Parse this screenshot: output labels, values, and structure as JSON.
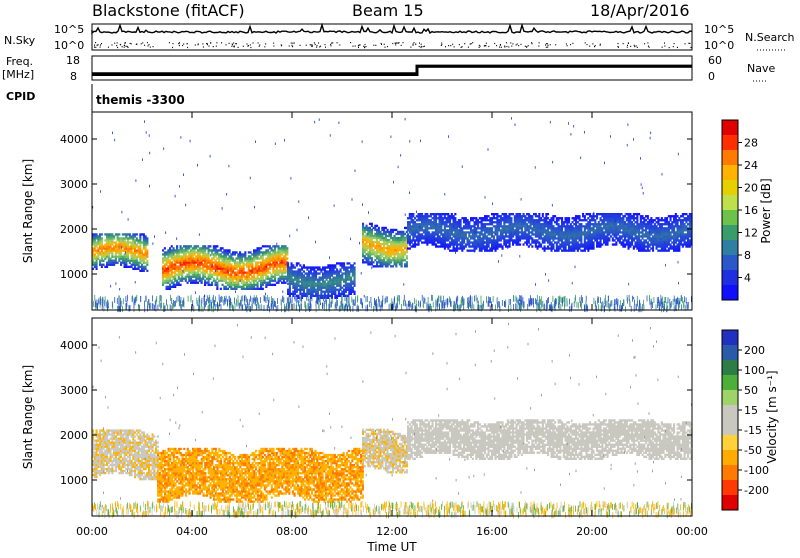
{
  "header": {
    "title": "Blackstone (fitACF)",
    "beam": "Beam 15",
    "date": "18/Apr/2016"
  },
  "housekeeping": {
    "nsky_label": "N.Sky",
    "nsearch_label": "N.Search",
    "nsky_ticks": [
      "10^5",
      "10^0"
    ],
    "nsearch_ticks": [
      "10^5",
      "10^0"
    ],
    "freq_label_1": "Freq.",
    "freq_label_2": "[MHz]",
    "freq_ticks": [
      "18",
      "8"
    ],
    "nave_label": "Nave",
    "nave_ticks": [
      "60",
      "0"
    ],
    "cpid_label": "CPID",
    "cpid_value": "themis -3300",
    "freq_steps": [
      {
        "t": 0,
        "mhz": 10.3
      },
      {
        "t": 13.0,
        "mhz": 10.3
      },
      {
        "t": 13.0,
        "mhz": 13.8
      },
      {
        "t": 24,
        "mhz": 13.8
      }
    ],
    "nave_steps": [
      {
        "t": 0,
        "n": 18
      },
      {
        "t": 13.0,
        "n": 18
      },
      {
        "t": 13.0,
        "n": 32
      },
      {
        "t": 24,
        "n": 32
      }
    ]
  },
  "panels": [
    {
      "ylabel": "Slant Range [km]",
      "cbar_label": "Power [dB]",
      "cbar_ticks": [
        "28",
        "24",
        "20",
        "16",
        "12",
        "8",
        "4"
      ],
      "cbar_colors": [
        "#e00000",
        "#ff3000",
        "#ff7a00",
        "#ffb300",
        "#e6d000",
        "#bfe04a",
        "#6cc24a",
        "#3a9c6a",
        "#2f7fa0",
        "#2a58c8",
        "#1f2fe0",
        "#1010ff"
      ]
    },
    {
      "ylabel": "Slant Range [km]",
      "cbar_label": "Velocity [m s⁻¹]",
      "cbar_ticks": [
        "200",
        "100",
        "50",
        "15",
        "-15",
        "-50",
        "-100",
        "-200"
      ],
      "cbar_colors": [
        "#2030c0",
        "#2a5aa8",
        "#2e7d48",
        "#4caf3a",
        "#9ed36a",
        "#c8c8c0",
        "#c8c8c0",
        "#ffd23a",
        "#ffab00",
        "#ff7a00",
        "#ff3a00",
        "#e00000"
      ]
    }
  ],
  "chart_data": {
    "type": "heatmap",
    "title": "Blackstone (fitACF)",
    "xlabel": "Time UT",
    "ylabel": "Slant Range [km]",
    "x_unit": "hours UT",
    "xlim": [
      0,
      24
    ],
    "ylim": [
      200,
      4600
    ],
    "x_ticks": [
      "00:00",
      "04:00",
      "08:00",
      "12:00",
      "16:00",
      "20:00",
      "00:00"
    ],
    "y_ticks": [
      "1000",
      "2000",
      "3000",
      "4000"
    ],
    "power_regions": [
      {
        "t0": 0.0,
        "t1": 2.2,
        "r0": 1050,
        "r1": 1900,
        "peak_db": 26
      },
      {
        "t0": 2.8,
        "t1": 7.8,
        "r0": 650,
        "r1": 1600,
        "peak_db": 30
      },
      {
        "t0": 7.8,
        "t1": 10.5,
        "r0": 450,
        "r1": 1250,
        "peak_db": 12
      },
      {
        "t0": 10.8,
        "t1": 12.6,
        "r0": 1150,
        "r1": 2100,
        "peak_db": 24
      },
      {
        "t0": 12.6,
        "t1": 24.0,
        "r0": 1500,
        "r1": 2350,
        "peak_db": 10
      }
    ],
    "velocity_regions": [
      {
        "t0": 0.0,
        "t1": 2.6,
        "r0": 1000,
        "r1": 2100,
        "v": -10
      },
      {
        "t0": 2.6,
        "t1": 10.8,
        "r0": 500,
        "r1": 1700,
        "v": -45
      },
      {
        "t0": 10.8,
        "t1": 12.6,
        "r0": 1150,
        "r1": 2100,
        "v": -10
      },
      {
        "t0": 12.6,
        "t1": 24.0,
        "r0": 1450,
        "r1": 2350,
        "v": 0
      }
    ]
  }
}
